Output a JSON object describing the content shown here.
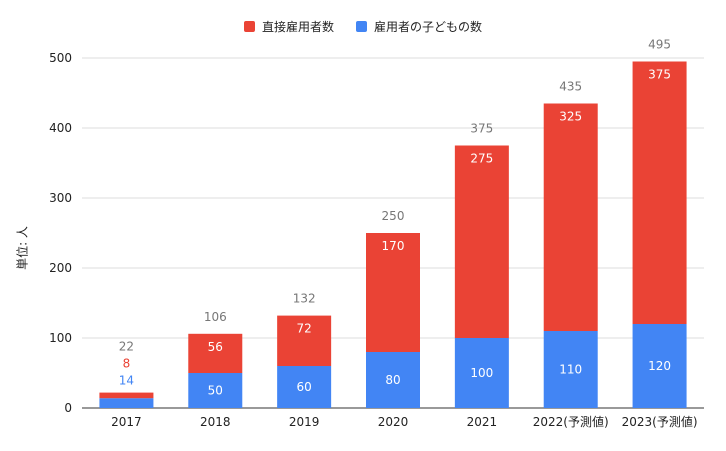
{
  "chart_data": {
    "type": "bar",
    "stacked": true,
    "categories": [
      "2017",
      "2018",
      "2019",
      "2020",
      "2021",
      "2022(予測値)",
      "2023(予測値)"
    ],
    "series": [
      {
        "name": "雇用者の子どもの数",
        "color": "#4285f4",
        "values": [
          14,
          50,
          60,
          80,
          100,
          110,
          120
        ]
      },
      {
        "name": "直接雇用者数",
        "color": "#ea4335",
        "values": [
          8,
          56,
          72,
          170,
          275,
          325,
          375
        ]
      }
    ],
    "totals": [
      22,
      106,
      132,
      250,
      375,
      435,
      495
    ],
    "legend_order": [
      "直接雇用者数",
      "雇用者の子どもの数"
    ],
    "legend_position": "top",
    "ylabel": "単位: 人",
    "xlabel": "",
    "ylim": [
      0,
      500
    ],
    "yticks": [
      0,
      100,
      200,
      300,
      400,
      500
    ],
    "grid": true
  }
}
